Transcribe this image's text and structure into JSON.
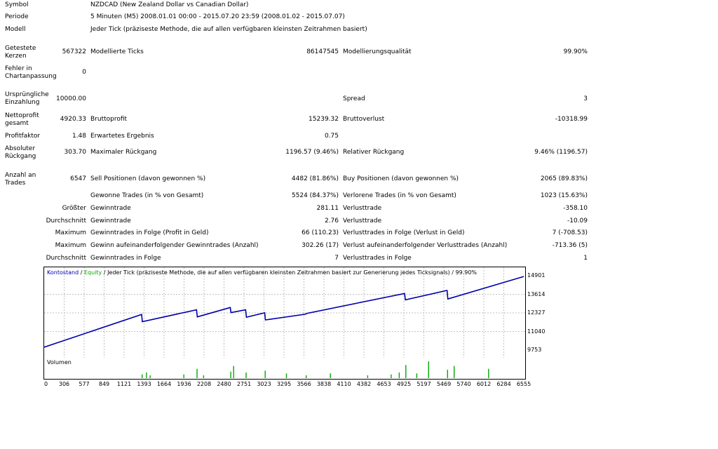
{
  "header": {
    "symbol_label": "Symbol",
    "symbol_value": "NZDCAD (New Zealand Dollar vs Canadian Dollar)",
    "period_label": "Periode",
    "period_value": "5 Minuten (M5) 2008.01.01 00:00 - 2015.07.20 23:59 (2008.01.02 - 2015.07.07)",
    "model_label": "Modell",
    "model_value": "Jeder Tick (präziseste Methode, die auf allen verfügbaren kleinsten Zeitrahmen basiert)"
  },
  "stats": {
    "bars_label": "Getestete Kerzen",
    "bars_value": "567322",
    "ticks_label": "Modellierte Ticks",
    "ticks_value": "86147545",
    "quality_label": "Modellierungsqualität",
    "quality_value": "99.90%",
    "mismatch_label": "Fehler in Chartanpassung",
    "mismatch_value": "0",
    "deposit_label": "Ursprüngliche Einzahlung",
    "deposit_value": "10000.00",
    "spread_label": "Spread",
    "spread_value": "3",
    "netprofit_label": "Nettoprofit gesamt",
    "netprofit_value": "4920.33",
    "grossprofit_label": "Bruttoprofit",
    "grossprofit_value": "15239.32",
    "grossloss_label": "Bruttoverlust",
    "grossloss_value": "-10318.99",
    "pf_label": "Profitfaktor",
    "pf_value": "1.48",
    "expected_label": "Erwartetes Ergebnis",
    "expected_value": "0.75",
    "absdd_label": "Absoluter Rückgang",
    "absdd_value": "303.70",
    "maxdd_label": "Maximaler Rückgang",
    "maxdd_value": "1196.57 (9.46%)",
    "reldd_label": "Relativer Rückgang",
    "reldd_value": "9.46% (1196.57)",
    "trades_label": "Anzahl an Trades",
    "trades_value": "6547",
    "sell_label": "Sell Positionen (davon gewonnen %)",
    "sell_value": "4482 (81.86%)",
    "buy_label": "Buy Positionen (davon gewonnen %)",
    "buy_value": "2065 (89.83%)",
    "won_label": "Gewonne Trades (in % von Gesamt)",
    "won_value": "5524 (84.37%)",
    "lost_label": "Verlorene Trades (in % von Gesamt)",
    "lost_value": "1023 (15.63%)",
    "largest_label": "Größter",
    "largest_win_label": "Gewinntrade",
    "largest_win_value": "281.11",
    "largest_loss_label": "Verlusttrade",
    "largest_loss_value": "-358.10",
    "avg_label": "Durchschnitt",
    "avg_win_label": "Gewinntrade",
    "avg_win_value": "2.76",
    "avg_loss_label": "Verlusttrade",
    "avg_loss_value": "-10.09",
    "max1_label": "Maximum",
    "max_consec_wins_label": "Gewinntrades in Folge (Profit in Geld)",
    "max_consec_wins_value": "66 (110.23)",
    "max_consec_losses_label": "Verlusttrades in Folge (Verlust in Geld)",
    "max_consec_losses_value": "7 (-708.53)",
    "max2_label": "Maximum",
    "max_consec_profit_label": "Gewinn aufeinanderfolgender Gewinntrades (Anzahl)",
    "max_consec_profit_value": "302.26 (17)",
    "max_consec_loss_label": "Verlust aufeinanderfolgender Verlusttrades (Anzahl)",
    "max_consec_loss_value": "-713.36 (5)",
    "avg2_label": "Durchschnitt",
    "avg_consec_wins_label": "Gewinntrades in Folge",
    "avg_consec_wins_value": "7",
    "avg_consec_losses_label": "Verlusttrades in Folge",
    "avg_consec_losses_value": "1"
  },
  "chart": {
    "legend_balance": "Kontostand",
    "legend_sep1": " / ",
    "legend_equity": "Equity",
    "legend_rest": " / Jeder Tick (präziseste Methode, die auf allen verfügbaren kleinsten Zeitrahmen basiert zur Generierung jedes Ticksignals) / 99.90%",
    "volume_label": "Volumen",
    "line_color": "#0000aa",
    "volume_color": "#00aa00"
  },
  "chart_data": {
    "type": "line",
    "ylim": [
      9753,
      14901
    ],
    "yticks": [
      "14901",
      "13614",
      "12327",
      "11040",
      "9753"
    ],
    "xlim": [
      0,
      6547
    ],
    "xticks": [
      "0",
      "306",
      "577",
      "849",
      "1121",
      "1393",
      "1664",
      "1936",
      "2208",
      "2480",
      "2751",
      "3023",
      "3295",
      "3566",
      "3838",
      "4110",
      "4382",
      "4653",
      "4925",
      "5197",
      "5469",
      "5740",
      "6012",
      "6284",
      "6555"
    ],
    "series": [
      {
        "x": [
          0,
          1330,
          1340,
          2080,
          2090,
          2540,
          2550,
          2750,
          2760,
          3010,
          3020,
          3570,
          3580,
          4920,
          4930,
          5500,
          5510,
          6547
        ],
        "y": [
          9950,
          12220,
          11720,
          12540,
          12050,
          12700,
          12350,
          12540,
          12030,
          12330,
          11840,
          12240,
          12290,
          13670,
          13230,
          13880,
          13290,
          14850
        ]
      }
    ],
    "volume": {
      "x": [
        1330,
        1390,
        1440,
        1900,
        2080,
        2170,
        2540,
        2580,
        2750,
        3010,
        3300,
        3570,
        3900,
        4410,
        4730,
        4840,
        4930,
        5080,
        5240,
        5500,
        5590,
        6060
      ],
      "values": [
        4,
        6,
        3,
        4,
        10,
        3,
        7,
        13,
        6,
        8,
        5,
        3,
        5,
        3,
        4,
        6,
        14,
        5,
        18,
        9,
        13,
        10
      ]
    }
  }
}
